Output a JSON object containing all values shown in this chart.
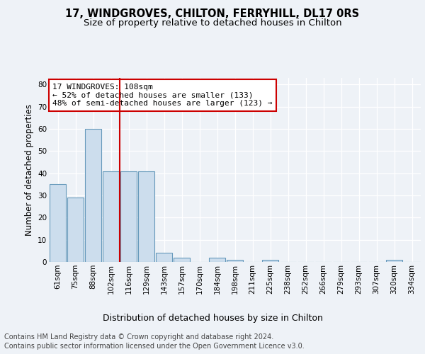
{
  "title1": "17, WINDGROVES, CHILTON, FERRYHILL, DL17 0RS",
  "title2": "Size of property relative to detached houses in Chilton",
  "xlabel": "Distribution of detached houses by size in Chilton",
  "ylabel": "Number of detached properties",
  "footer1": "Contains HM Land Registry data © Crown copyright and database right 2024.",
  "footer2": "Contains public sector information licensed under the Open Government Licence v3.0.",
  "categories": [
    "61sqm",
    "75sqm",
    "88sqm",
    "102sqm",
    "116sqm",
    "129sqm",
    "143sqm",
    "157sqm",
    "170sqm",
    "184sqm",
    "198sqm",
    "211sqm",
    "225sqm",
    "238sqm",
    "252sqm",
    "266sqm",
    "279sqm",
    "293sqm",
    "307sqm",
    "320sqm",
    "334sqm"
  ],
  "values": [
    35,
    29,
    60,
    41,
    41,
    41,
    4,
    2,
    0,
    2,
    1,
    0,
    1,
    0,
    0,
    0,
    0,
    0,
    0,
    1,
    0
  ],
  "bar_color": "#ccdded",
  "bar_edge_color": "#6699bb",
  "vline_x": 3.5,
  "vline_color": "#cc0000",
  "annotation_text": "17 WINDGROVES: 108sqm\n← 52% of detached houses are smaller (133)\n48% of semi-detached houses are larger (123) →",
  "annotation_box_color": "#ffffff",
  "annotation_box_edge": "#cc0000",
  "ylim": [
    0,
    83
  ],
  "yticks": [
    0,
    10,
    20,
    30,
    40,
    50,
    60,
    70,
    80
  ],
  "background_color": "#eef2f7",
  "plot_background": "#eef2f7",
  "grid_color": "#ffffff",
  "title1_fontsize": 10.5,
  "title2_fontsize": 9.5,
  "xlabel_fontsize": 9,
  "ylabel_fontsize": 8.5,
  "tick_fontsize": 7.5,
  "annotation_fontsize": 8,
  "footer_fontsize": 7
}
